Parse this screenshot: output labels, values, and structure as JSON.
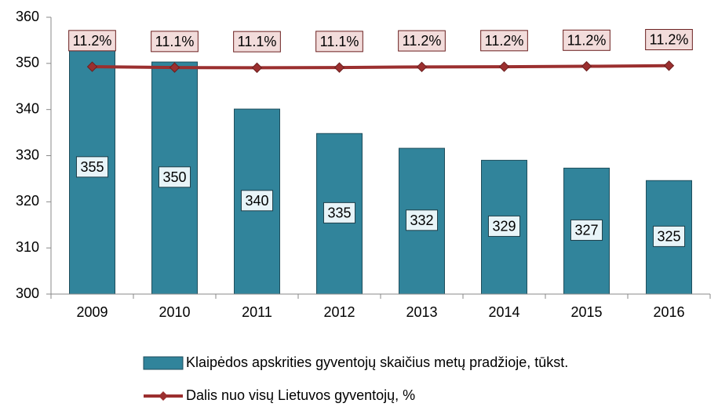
{
  "chart_data": {
    "type": "bar",
    "categories": [
      "2009",
      "2010",
      "2011",
      "2012",
      "2013",
      "2014",
      "2015",
      "2016"
    ],
    "series": [
      {
        "name": "Klaipėdos apskrities gyventojų skaičius metų pradžioje, tūkst.",
        "type": "bar",
        "color": "#31849b",
        "values": [
          354.7,
          350.3,
          340.1,
          334.8,
          331.6,
          329,
          327.3,
          324.6
        ],
        "value_labels": [
          "355",
          "350",
          "340",
          "335",
          "332",
          "329",
          "327",
          "325"
        ]
      },
      {
        "name": "Dalis nuo visų Lietuvos gyventojų, %",
        "type": "line",
        "axis": "y2",
        "color": "#9b2f2f",
        "values": [
          11.17,
          11.13,
          11.12,
          11.13,
          11.16,
          11.17,
          11.19,
          11.22
        ],
        "value_labels": [
          "11.2%",
          "11.1%",
          "11.1%",
          "11.1%",
          "11.2%",
          "11.2%",
          "11.2%",
          "11.2%"
        ]
      }
    ],
    "ylim": [
      300,
      360
    ],
    "yticks": [
      300,
      310,
      320,
      330,
      340,
      350,
      360
    ],
    "y2lim": [
      0,
      13.6
    ],
    "legend": "bottom"
  }
}
